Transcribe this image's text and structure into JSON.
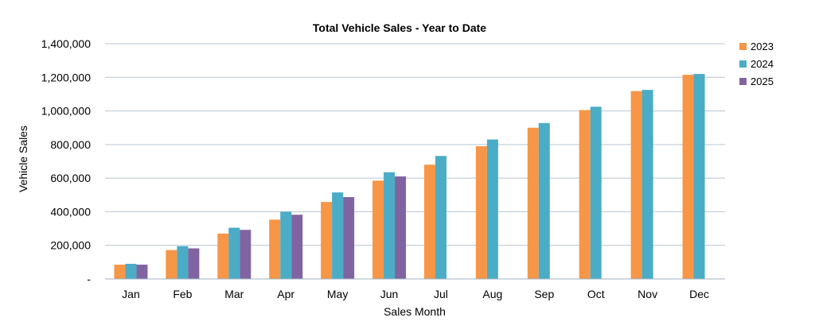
{
  "chart_data": {
    "type": "bar",
    "title": "Total Vehicle Sales - Year to Date",
    "xlabel": "Sales Month",
    "ylabel": "Vehicle Sales",
    "categories": [
      "Jan",
      "Feb",
      "Mar",
      "Apr",
      "May",
      "Jun",
      "Jul",
      "Aug",
      "Sep",
      "Oct",
      "Nov",
      "Dec"
    ],
    "ylim": [
      0,
      1400000
    ],
    "yticks": [
      0,
      200000,
      400000,
      600000,
      800000,
      1000000,
      1200000,
      1400000
    ],
    "ytick_labels": [
      "-",
      "200,000",
      "400,000",
      "600,000",
      "800,000",
      "1,000,000",
      "1,200,000",
      "1,400,000"
    ],
    "grid": true,
    "legend_position": "right",
    "series": [
      {
        "name": "2023",
        "color": "#F79646",
        "values": [
          85000,
          172000,
          270000,
          353000,
          458000,
          585000,
          680000,
          790000,
          900000,
          1005000,
          1118000,
          1215000
        ]
      },
      {
        "name": "2024",
        "color": "#4BACC6",
        "values": [
          90000,
          195000,
          305000,
          400000,
          515000,
          635000,
          732000,
          830000,
          928000,
          1025000,
          1125000,
          1220000
        ]
      },
      {
        "name": "2025",
        "color": "#8064A2",
        "values": [
          85000,
          182000,
          292000,
          382000,
          487000,
          610000,
          null,
          null,
          null,
          null,
          null,
          null
        ]
      }
    ]
  }
}
